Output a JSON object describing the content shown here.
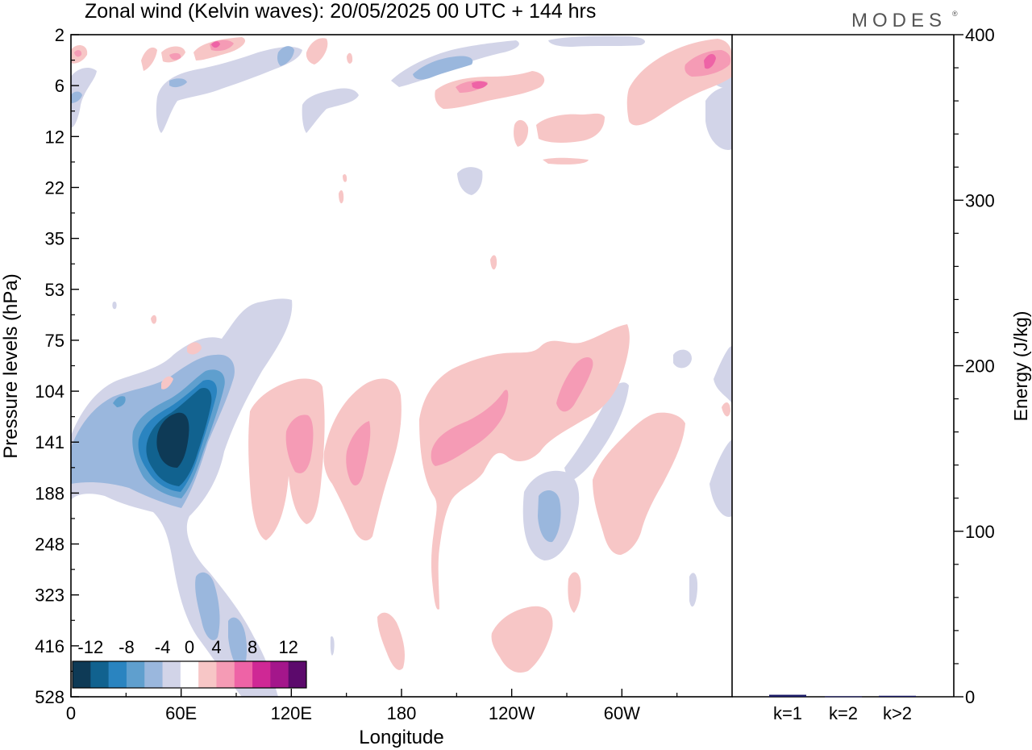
{
  "header": {
    "title": "Zonal wind (Kelvin waves):  20/05/2025  00 UTC  + 144 hrs",
    "logo": "MODES",
    "logo_mark": "®"
  },
  "chart_data": [
    {
      "type": "heatmap",
      "title": "Zonal wind (Kelvin waves):  20/05/2025  00 UTC  + 144 hrs",
      "xlabel": "Longitude",
      "ylabel": "Pressure levels (hPa)",
      "x_ticks": [
        "0",
        "60E",
        "120E",
        "180",
        "120W",
        "60W"
      ],
      "x_tick_degrees": [
        0,
        60,
        120,
        180,
        240,
        300
      ],
      "xlim": [
        0,
        360
      ],
      "y_ticks": [
        "2",
        "6",
        "12",
        "22",
        "35",
        "53",
        "75",
        "104",
        "141",
        "188",
        "248",
        "323",
        "416",
        "528"
      ],
      "colorbar": {
        "labels": [
          "-12",
          "-8",
          "-4",
          "0",
          "4",
          "8",
          "12"
        ],
        "levels": [
          -14,
          -12,
          -10,
          -8,
          -6,
          -4,
          -2,
          2,
          4,
          6,
          8,
          10,
          12,
          14
        ],
        "colors": [
          "#0e3a56",
          "#11628f",
          "#2a84c0",
          "#5f9fce",
          "#9ab7dd",
          "#d2d4e8",
          "#ffffff",
          "#f7c6c6",
          "#f59bb5",
          "#ee63a6",
          "#cf2895",
          "#a4168b",
          "#5c0a6c"
        ]
      },
      "features": [
        {
          "sign": "negative",
          "lon": 52,
          "level": "141",
          "peak": -13
        },
        {
          "sign": "negative",
          "lon": 30,
          "level": "141",
          "peak": -6
        },
        {
          "sign": "negative",
          "lon": 78,
          "level": "416",
          "peak": -5
        },
        {
          "sign": "negative",
          "lon": 260,
          "level": "188",
          "peak": -5
        },
        {
          "sign": "negative",
          "lon": 215,
          "level": "6",
          "peak": -5
        },
        {
          "sign": "positive",
          "lon": 110,
          "level": "141",
          "peak": 5
        },
        {
          "sign": "positive",
          "lon": 155,
          "level": "141",
          "peak": 5
        },
        {
          "sign": "positive",
          "lon": 210,
          "level": "141",
          "peak": 6
        },
        {
          "sign": "positive",
          "lon": 272,
          "level": "104",
          "peak": 5
        },
        {
          "sign": "positive",
          "lon": 350,
          "level": "2",
          "peak": 8
        },
        {
          "sign": "positive",
          "lon": 225,
          "level": "6",
          "peak": 6
        }
      ]
    },
    {
      "type": "bar",
      "ylabel": "Energy (J/kg)",
      "categories": [
        "k=1",
        "k=2",
        "k>2"
      ],
      "values": [
        1.2,
        0.3,
        0.6
      ],
      "ylim": [
        0,
        400
      ],
      "y_ticks": [
        "0",
        "100",
        "200",
        "300",
        "400"
      ],
      "color": "#1a1a66"
    }
  ]
}
